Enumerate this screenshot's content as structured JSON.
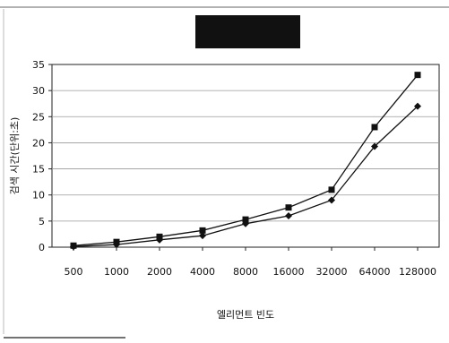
{
  "chart_data": {
    "type": "line",
    "title": "",
    "xlabel": "엘리먼트 빈도",
    "ylabel": "검색 시간(단위:초)",
    "categories": [
      "500",
      "1000",
      "2000",
      "4000",
      "8000",
      "16000",
      "32000",
      "64000",
      "128000"
    ],
    "ylim": [
      0,
      35
    ],
    "yticks": [
      0,
      5,
      10,
      15,
      20,
      25,
      30,
      35
    ],
    "grid": true,
    "series": [
      {
        "marker": "square",
        "values": [
          0.3,
          1.0,
          2.0,
          3.2,
          5.3,
          7.6,
          11.0,
          23.0,
          33.0
        ]
      },
      {
        "marker": "diamond",
        "values": [
          0.1,
          0.5,
          1.4,
          2.2,
          4.5,
          6.0,
          9.0,
          19.3,
          27.0
        ]
      }
    ],
    "colors": {
      "line": "#111111",
      "grid": "#999999",
      "title_box": "#111111"
    }
  }
}
